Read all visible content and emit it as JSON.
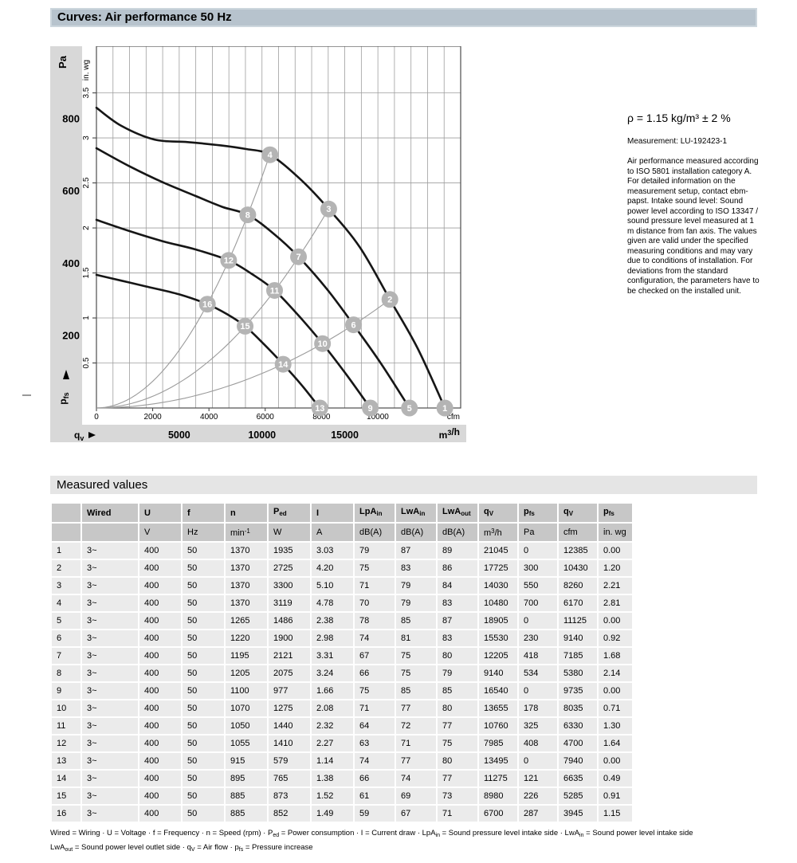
{
  "page": {
    "curves_header": "Curves: Air performance 50 Hz",
    "measured_header": "Measured values"
  },
  "notes": {
    "density": "ρ = 1.15 kg/m³ ± 2 %",
    "measurement": "Measurement: LU-192423-1",
    "body": "Air performance measured according to ISO 5801 installation category A. For detailed information on the measurement setup, contact ebm-papst. Intake sound level: Sound power level according to ISO 13347 / sound pressure level measured at 1 m distance from fan axis. The values given are valid under the specified measuring conditions and may vary due to conditions of installation. For deviations from the standard configuration, the parameters have to be checked on the installed unit."
  },
  "chart_data": {
    "type": "line",
    "title": "Air performance 50 Hz",
    "x_axis": {
      "arrow_label": "qv",
      "primary_unit": "m³/h",
      "primary_ticks": [
        5000,
        10000,
        15000
      ],
      "secondary_unit": "cfm",
      "secondary_ticks": [
        0,
        2000,
        4000,
        6000,
        8000,
        10000
      ],
      "range_m3h": [
        0,
        22000
      ],
      "grid_step_m3h": 1000,
      "cfm_to_m3h": 1.699
    },
    "y_axis": {
      "arrow_label": "pfs",
      "primary_unit": "Pa",
      "primary_ticks": [
        200,
        400,
        600,
        800
      ],
      "secondary_unit": "in. wg",
      "secondary_ticks": [
        0.5,
        1,
        1.5,
        2,
        2.5,
        3,
        3.5
      ],
      "range_pa": [
        0,
        1000
      ],
      "grid_step_inwg": 0.5,
      "inwg_to_pa": 248.84
    },
    "fan_curves": [
      {
        "name": "speed-1370",
        "points": [
          [
            0,
            830
          ],
          [
            1500,
            780
          ],
          [
            3500,
            742
          ],
          [
            5500,
            735
          ],
          [
            7500,
            726
          ],
          [
            9000,
            716
          ],
          [
            10480,
            700
          ],
          [
            12300,
            633
          ],
          [
            14030,
            550
          ],
          [
            15900,
            445
          ],
          [
            17725,
            300
          ],
          [
            19400,
            165
          ],
          [
            21045,
            0
          ]
        ]
      },
      {
        "name": "speed-1265",
        "points": [
          [
            0,
            718
          ],
          [
            2000,
            668
          ],
          [
            4000,
            624
          ],
          [
            6000,
            586
          ],
          [
            7600,
            556
          ],
          [
            9140,
            534
          ],
          [
            10700,
            482
          ],
          [
            12205,
            418
          ],
          [
            13900,
            330
          ],
          [
            15530,
            230
          ],
          [
            17200,
            122
          ],
          [
            18905,
            0
          ]
        ]
      },
      {
        "name": "speed-1100",
        "points": [
          [
            0,
            520
          ],
          [
            2000,
            489
          ],
          [
            4000,
            461
          ],
          [
            6000,
            438
          ],
          [
            7985,
            408
          ],
          [
            9400,
            370
          ],
          [
            10760,
            325
          ],
          [
            12200,
            256
          ],
          [
            13655,
            178
          ],
          [
            15100,
            92
          ],
          [
            16540,
            0
          ]
        ]
      },
      {
        "name": "speed-900",
        "points": [
          [
            0,
            368
          ],
          [
            1500,
            352
          ],
          [
            3000,
            336
          ],
          [
            5000,
            314
          ],
          [
            6700,
            287
          ],
          [
            7900,
            259
          ],
          [
            8980,
            226
          ],
          [
            10100,
            177
          ],
          [
            11275,
            121
          ],
          [
            12400,
            63
          ],
          [
            13495,
            0
          ]
        ]
      }
    ],
    "system_curves": [
      {
        "k": 6.39e-06,
        "q_end": 10480
      },
      {
        "k": 2.8e-06,
        "q_end": 14030
      },
      {
        "k": 9.54e-07,
        "q_end": 17725
      }
    ],
    "markers": [
      {
        "n": 1,
        "q": 21045,
        "p": 0
      },
      {
        "n": 2,
        "q": 17725,
        "p": 300
      },
      {
        "n": 3,
        "q": 14030,
        "p": 550
      },
      {
        "n": 4,
        "q": 10480,
        "p": 700
      },
      {
        "n": 5,
        "q": 18905,
        "p": 0
      },
      {
        "n": 6,
        "q": 15530,
        "p": 230
      },
      {
        "n": 7,
        "q": 12205,
        "p": 418
      },
      {
        "n": 8,
        "q": 9140,
        "p": 534
      },
      {
        "n": 9,
        "q": 16540,
        "p": 0
      },
      {
        "n": 10,
        "q": 13655,
        "p": 178
      },
      {
        "n": 11,
        "q": 10760,
        "p": 325
      },
      {
        "n": 12,
        "q": 7985,
        "p": 408
      },
      {
        "n": 13,
        "q": 13495,
        "p": 0
      },
      {
        "n": 14,
        "q": 11275,
        "p": 121
      },
      {
        "n": 15,
        "q": 8980,
        "p": 226
      },
      {
        "n": 16,
        "q": 6700,
        "p": 287
      }
    ],
    "colors": {
      "fan_curve": "#161616",
      "system_curve": "#9b9b9b",
      "marker_fill": "#b4b4b4",
      "marker_text": "#ffffff",
      "grid": "#9e9e9e",
      "frame": "#4d4d4d",
      "strip": "#d8d8d8"
    }
  },
  "table": {
    "headers": [
      "",
      "Wired",
      "U",
      "f",
      "n",
      "P_{ed}",
      "I",
      "LpA_{in}",
      "LwA_{in}",
      "LwA_{out}",
      "q_{V}",
      "p_{fs}",
      "q_{V}",
      "p_{fs}"
    ],
    "units": [
      "",
      "",
      "V",
      "Hz",
      "min^{-1}",
      "W",
      "A",
      "dB(A)",
      "dB(A)",
      "dB(A)",
      "m^{3}/h",
      "Pa",
      "cfm",
      "in. wg"
    ],
    "rows": [
      [
        "1",
        "3~",
        "400",
        "50",
        "1370",
        "1935",
        "3.03",
        "79",
        "87",
        "89",
        "21045",
        "0",
        "12385",
        "0.00"
      ],
      [
        "2",
        "3~",
        "400",
        "50",
        "1370",
        "2725",
        "4.20",
        "75",
        "83",
        "86",
        "17725",
        "300",
        "10430",
        "1.20"
      ],
      [
        "3",
        "3~",
        "400",
        "50",
        "1370",
        "3300",
        "5.10",
        "71",
        "79",
        "84",
        "14030",
        "550",
        "8260",
        "2.21"
      ],
      [
        "4",
        "3~",
        "400",
        "50",
        "1370",
        "3119",
        "4.78",
        "70",
        "79",
        "83",
        "10480",
        "700",
        "6170",
        "2.81"
      ],
      [
        "5",
        "3~",
        "400",
        "50",
        "1265",
        "1486",
        "2.38",
        "78",
        "85",
        "87",
        "18905",
        "0",
        "11125",
        "0.00"
      ],
      [
        "6",
        "3~",
        "400",
        "50",
        "1220",
        "1900",
        "2.98",
        "74",
        "81",
        "83",
        "15530",
        "230",
        "9140",
        "0.92"
      ],
      [
        "7",
        "3~",
        "400",
        "50",
        "1195",
        "2121",
        "3.31",
        "67",
        "75",
        "80",
        "12205",
        "418",
        "7185",
        "1.68"
      ],
      [
        "8",
        "3~",
        "400",
        "50",
        "1205",
        "2075",
        "3.24",
        "66",
        "75",
        "79",
        "9140",
        "534",
        "5380",
        "2.14"
      ],
      [
        "9",
        "3~",
        "400",
        "50",
        "1100",
        "977",
        "1.66",
        "75",
        "85",
        "85",
        "16540",
        "0",
        "9735",
        "0.00"
      ],
      [
        "10",
        "3~",
        "400",
        "50",
        "1070",
        "1275",
        "2.08",
        "71",
        "77",
        "80",
        "13655",
        "178",
        "8035",
        "0.71"
      ],
      [
        "11",
        "3~",
        "400",
        "50",
        "1050",
        "1440",
        "2.32",
        "64",
        "72",
        "77",
        "10760",
        "325",
        "6330",
        "1.30"
      ],
      [
        "12",
        "3~",
        "400",
        "50",
        "1055",
        "1410",
        "2.27",
        "63",
        "71",
        "75",
        "7985",
        "408",
        "4700",
        "1.64"
      ],
      [
        "13",
        "3~",
        "400",
        "50",
        "915",
        "579",
        "1.14",
        "74",
        "77",
        "80",
        "13495",
        "0",
        "7940",
        "0.00"
      ],
      [
        "14",
        "3~",
        "400",
        "50",
        "895",
        "765",
        "1.38",
        "66",
        "74",
        "77",
        "11275",
        "121",
        "6635",
        "0.49"
      ],
      [
        "15",
        "3~",
        "400",
        "50",
        "885",
        "873",
        "1.52",
        "61",
        "69",
        "73",
        "8980",
        "226",
        "5285",
        "0.91"
      ],
      [
        "16",
        "3~",
        "400",
        "50",
        "885",
        "852",
        "1.49",
        "59",
        "67",
        "71",
        "6700",
        "287",
        "3945",
        "1.15"
      ]
    ]
  },
  "footnotes": {
    "line1": "Wired = Wiring · U = Voltage · f = Frequency · n = Speed (rpm) · P_{ed} = Power consumption · I = Current draw · LpA_{in} = Sound pressure level intake side · LwA_{in} = Sound power level intake side",
    "line2": "LwA_{out} = Sound power level outlet side · q_{V} = Air flow · p_{fs} = Pressure increase"
  }
}
